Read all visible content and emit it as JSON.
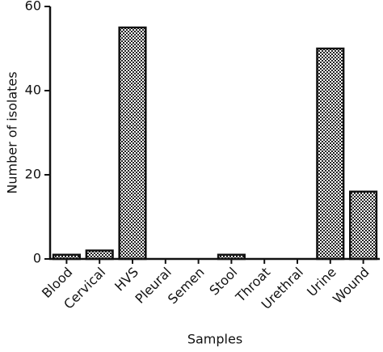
{
  "chart_data": {
    "type": "bar",
    "categories": [
      "Blood",
      "Cervical",
      "HVS",
      "Pleural",
      "Semen",
      "Stool",
      "Throat",
      "Urethral",
      "Urine",
      "Wound"
    ],
    "values": [
      1,
      2,
      55,
      0,
      0,
      1,
      0,
      0,
      50,
      16
    ],
    "ylim": [
      0,
      60
    ],
    "yticks": [
      0,
      20,
      40,
      60
    ],
    "y_label": "Number of isolates",
    "x_label": "Samples"
  }
}
